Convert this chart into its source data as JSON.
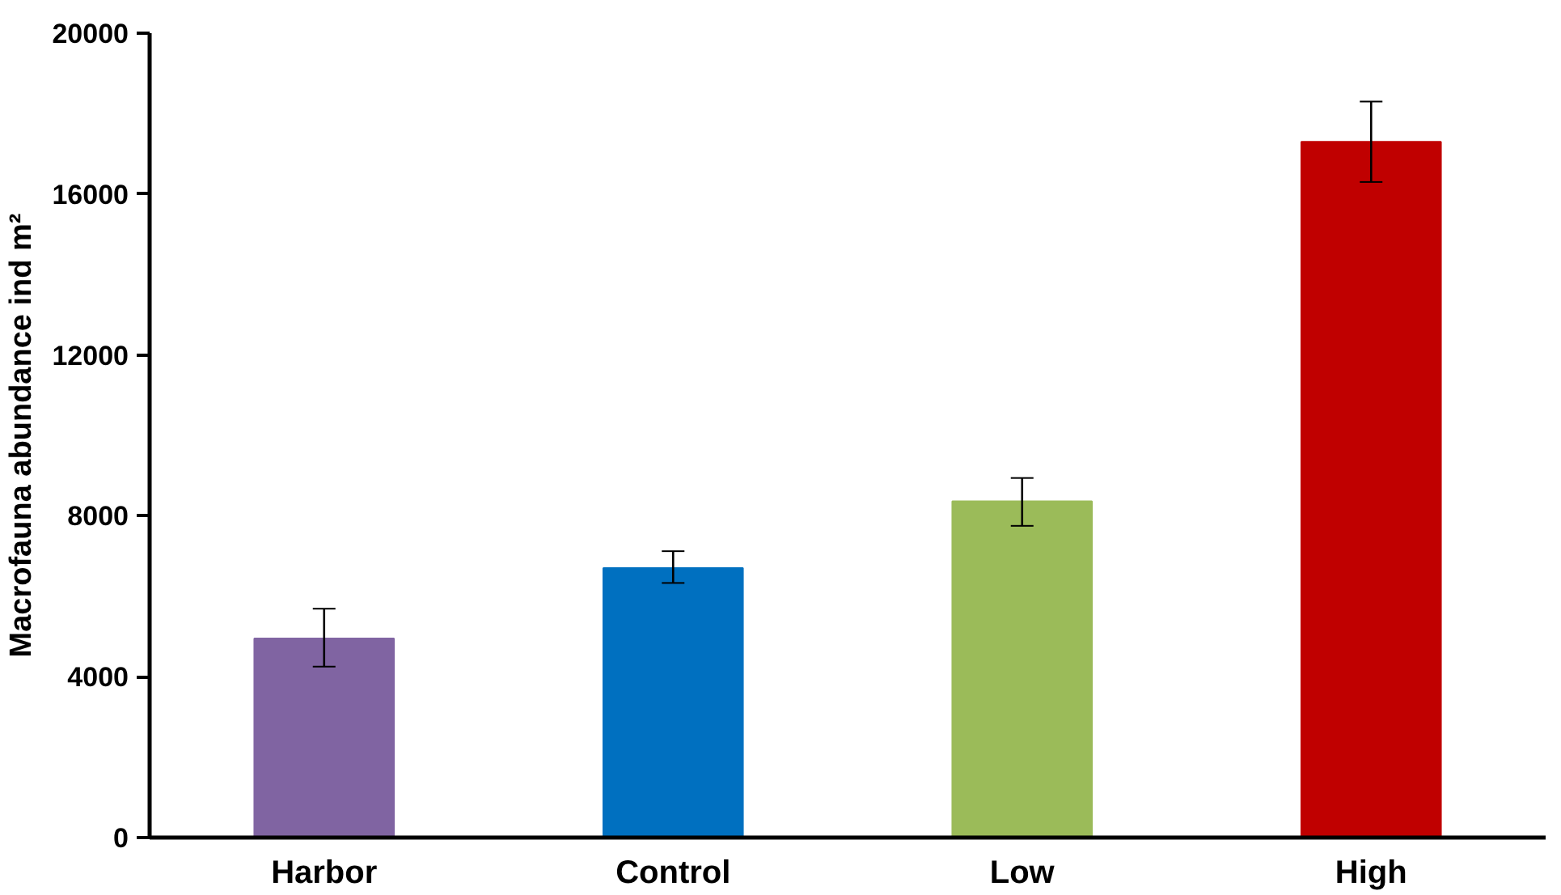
{
  "chart_data": {
    "type": "bar",
    "ylabel": "Macrofauna abundance ind m²",
    "categories": [
      "Harbor",
      "Control",
      "Low",
      "High"
    ],
    "values": [
      4950,
      6700,
      8360,
      17300
    ],
    "colors": [
      "#8064a2",
      "#0070c0",
      "#9bbb59",
      "#c00000"
    ],
    "errors": [
      [
        4250,
        5690
      ],
      [
        6330,
        7120
      ],
      [
        7750,
        8940
      ],
      [
        16300,
        18300
      ]
    ],
    "ylim": [
      0,
      20000
    ],
    "yticks": [
      0,
      4000,
      8000,
      12000,
      16000,
      20000
    ],
    "grid": false
  }
}
